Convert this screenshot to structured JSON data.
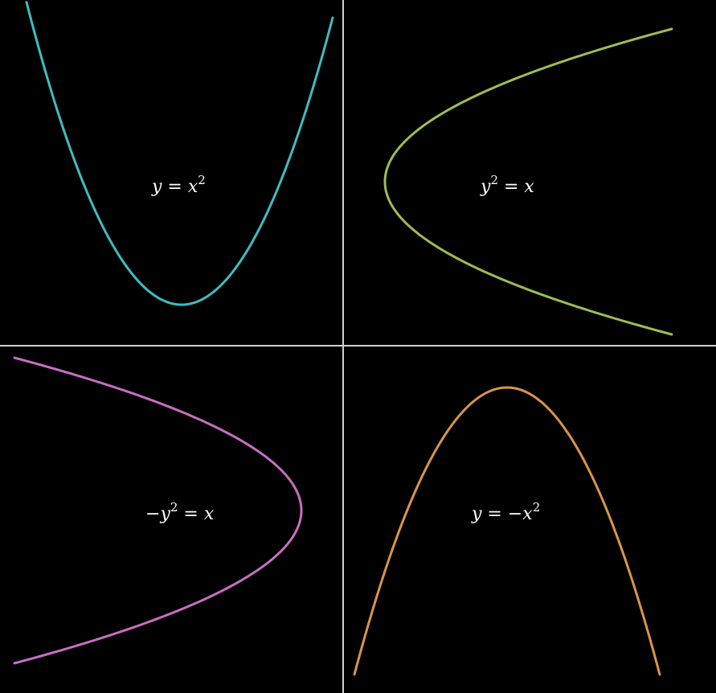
{
  "background_color": "#000000",
  "divider_color": "#d0d0d0",
  "panels": [
    {
      "id": "top-left",
      "curve_color": "#3fbcc1",
      "label": {
        "parts": [
          "y",
          " = ",
          "x",
          "2",
          ""
        ]
      }
    },
    {
      "id": "top-right",
      "curve_color": "#9dbd55",
      "label": {
        "parts": [
          "y",
          "2",
          " = ",
          "x"
        ]
      }
    },
    {
      "id": "bottom-left",
      "curve_color": "#c66fc1",
      "label": {
        "parts": [
          "−",
          "y",
          "2",
          " = ",
          "x"
        ]
      }
    },
    {
      "id": "bottom-right",
      "curve_color": "#d9944a",
      "label": {
        "parts": [
          "y",
          " = −",
          "x",
          "2"
        ]
      }
    }
  ]
}
